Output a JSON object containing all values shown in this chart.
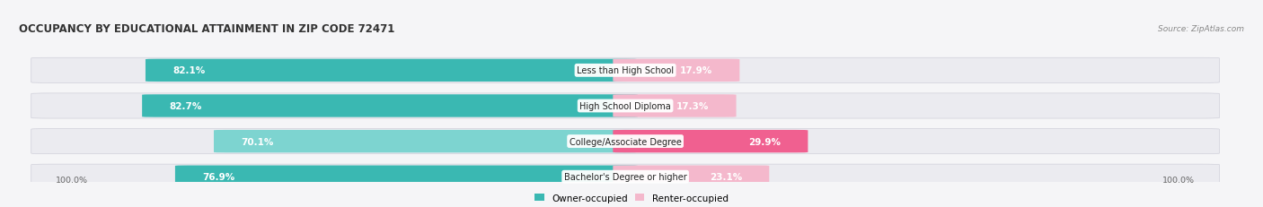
{
  "title": "OCCUPANCY BY EDUCATIONAL ATTAINMENT IN ZIP CODE 72471",
  "source": "Source: ZipAtlas.com",
  "categories": [
    "Less than High School",
    "High School Diploma",
    "College/Associate Degree",
    "Bachelor's Degree or higher"
  ],
  "owner_pct": [
    82.1,
    82.7,
    70.1,
    76.9
  ],
  "renter_pct": [
    17.9,
    17.3,
    29.9,
    23.1
  ],
  "owner_colors": [
    "#3ab8b2",
    "#3ab8b2",
    "#7dd4d0",
    "#3ab8b2"
  ],
  "renter_colors": [
    "#f4b8cc",
    "#f4b8cc",
    "#f06090",
    "#f4b8cc"
  ],
  "bg_color": "#f5f5f7",
  "row_bg": "#e8e8ee",
  "title_fontsize": 8.5,
  "source_fontsize": 6.5,
  "label_fontsize": 7.0,
  "pct_fontsize": 7.5,
  "legend_fontsize": 7.5,
  "owner_legend_color": "#3ab8b2",
  "renter_legend_color": "#f4b8cc"
}
